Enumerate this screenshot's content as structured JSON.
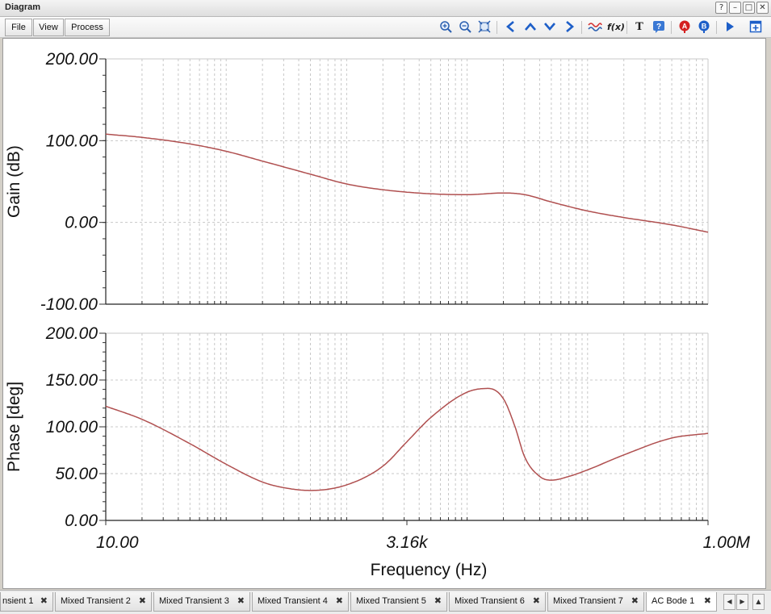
{
  "window": {
    "title": "Diagram",
    "buttons": {
      "help": "?",
      "minimize": "–",
      "maximize": "□",
      "close": "✕"
    }
  },
  "menu": {
    "file": "File",
    "view": "View",
    "process": "Process"
  },
  "toolbar_icons": [
    "zoom-in-icon",
    "zoom-out-icon",
    "zoom-fit-icon",
    "arrow-left-icon",
    "arrow-up-icon",
    "arrow-down-icon",
    "arrow-right-icon",
    "waveform-icon",
    "function-icon",
    "text-icon",
    "help-icon",
    "cursor-a-icon",
    "cursor-b-icon",
    "play-icon",
    "new-window-icon"
  ],
  "colors": {
    "trace": "#b05050",
    "grid": "#c8c8c8",
    "icon_blue": "#1e5fc8",
    "icon_red": "#d42020"
  },
  "chart_data": [
    {
      "type": "line",
      "ylabel": "Gain (dB)",
      "xscale": "log",
      "xlim": [
        10,
        1000000
      ],
      "ylim": [
        -100,
        200
      ],
      "yticks": [
        "200.00",
        "100.00",
        "0.00",
        "-100.00"
      ],
      "grid": true,
      "x": [
        10,
        20,
        50,
        100,
        200,
        500,
        1000,
        2000,
        5000,
        10000,
        20000,
        30000,
        50000,
        100000,
        200000,
        500000,
        1000000
      ],
      "series": [
        {
          "values": [
            108,
            104,
            96,
            87,
            75,
            59,
            47,
            40,
            35,
            34,
            36,
            34,
            25,
            14,
            6,
            -3,
            -12
          ]
        }
      ]
    },
    {
      "type": "line",
      "ylabel": "Phase [deg]",
      "xlabel": "Frequency (Hz)",
      "xscale": "log",
      "xlim": [
        10,
        1000000
      ],
      "ylim": [
        0,
        200
      ],
      "yticks": [
        "200.00",
        "150.00",
        "100.00",
        "50.00",
        "0.00"
      ],
      "xticks": [
        "10.00",
        "3.16k",
        "1.00M"
      ],
      "grid": true,
      "x": [
        10,
        20,
        50,
        100,
        200,
        300,
        500,
        1000,
        2000,
        3160,
        5000,
        10000,
        15000,
        20000,
        25000,
        30000,
        40000,
        50000,
        70000,
        100000,
        200000,
        500000,
        1000000
      ],
      "series": [
        {
          "values": [
            122,
            108,
            82,
            60,
            41,
            35,
            32,
            38,
            58,
            84,
            110,
            137,
            141,
            130,
            100,
            68,
            47,
            43,
            47,
            54,
            70,
            88,
            93
          ]
        }
      ]
    }
  ],
  "tabs": [
    {
      "label": "nsient 1",
      "active": false
    },
    {
      "label": "Mixed Transient 2",
      "active": false
    },
    {
      "label": "Mixed Transient 3",
      "active": false
    },
    {
      "label": "Mixed Transient 4",
      "active": false
    },
    {
      "label": "Mixed Transient 5",
      "active": false
    },
    {
      "label": "Mixed Transient 6",
      "active": false
    },
    {
      "label": "Mixed Transient 7",
      "active": false
    },
    {
      "label": "AC Bode 1",
      "active": true
    }
  ],
  "tab_close_glyph": "✖",
  "tab_nav": {
    "prev": "◀",
    "next": "▶",
    "up": "▲"
  }
}
